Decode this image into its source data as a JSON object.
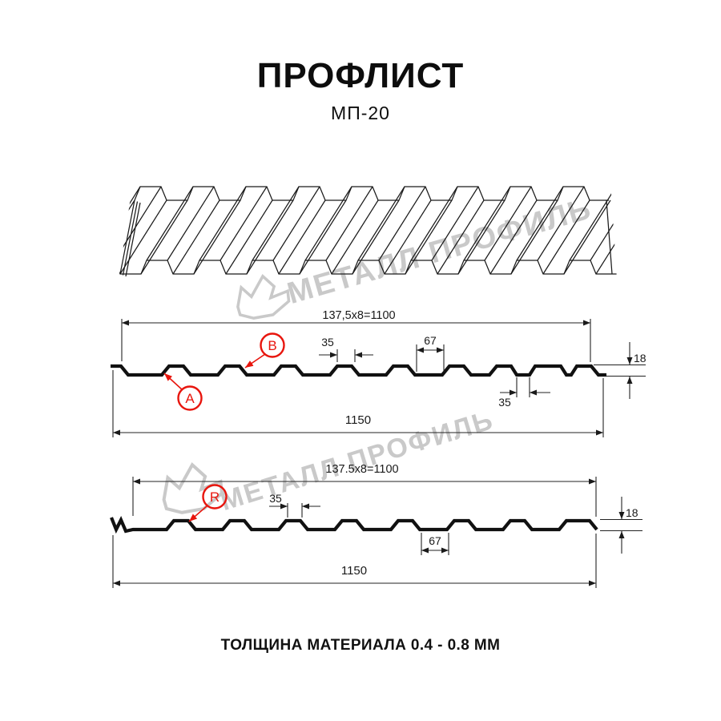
{
  "title": "ПРОФЛИСТ",
  "subtitle": "МП-20",
  "footer": "ТОЛЩИНА МАТЕРИАЛА 0.4 - 0.8 ММ",
  "watermark": {
    "brand": "МЕТАЛЛ ПРОФИЛЬ"
  },
  "colors": {
    "accent_red": "#e8150d",
    "line": "#1a1a1a",
    "watermark_gray": "#c9c9c9"
  },
  "profile_a": {
    "label_a": "А",
    "label_b": "В",
    "dim_module": "137,5x8=1100",
    "dim_rib_top": "35",
    "dim_valley": "67",
    "dim_notch": "35",
    "dim_height": "18",
    "dim_width": "1150"
  },
  "profile_r": {
    "label_r": "R",
    "dim_module": "137.5x8=1100",
    "dim_rib_top": "35",
    "dim_valley": "67",
    "dim_height": "18",
    "dim_width": "1150"
  }
}
